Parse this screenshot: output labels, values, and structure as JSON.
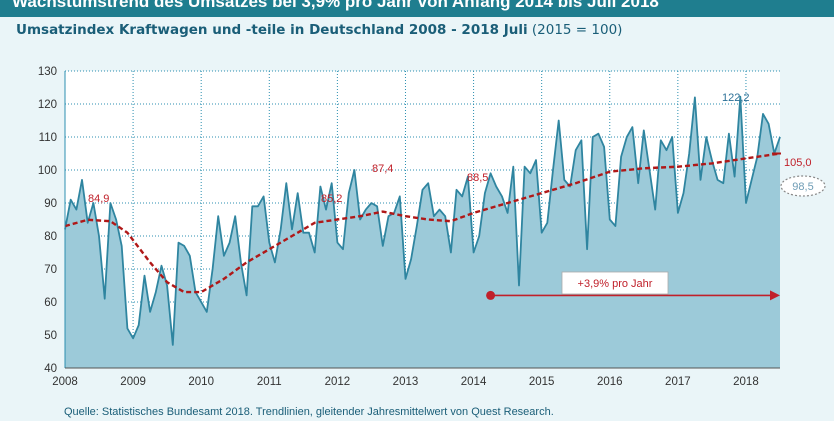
{
  "header": {
    "banner": "Wachstumstrend des Umsatzes bei 3,9% pro Jahr von Anfang 2014 bis Juli 2018",
    "title_bold": "Umsatzindex Kraftwagen und -teile in Deutschland 2008 - 2018 Juli",
    "title_suffix": "(2015 = 100)"
  },
  "footer": {
    "source": "Quelle: Statistisches Bundesamt 2018. Trendlinien, gleitender Jahresmittelwert von Quest Research."
  },
  "colors": {
    "area_fill": "#9ccad9",
    "index_line": "#2f85a0",
    "trend_line": "#b01818",
    "label_red": "#c0202a",
    "label_blue": "#2a6f96",
    "banner": "#1f7e8f"
  },
  "chart_data": {
    "type": "area",
    "grid": true,
    "ylim": [
      40,
      130
    ],
    "yticks": [
      "40",
      "50",
      "60",
      "70",
      "80",
      "90",
      "100",
      "110",
      "120",
      "130"
    ],
    "xlim": [
      2008,
      2018.5
    ],
    "xticks": [
      "2008",
      "2009",
      "2010",
      "2011",
      "2012",
      "2013",
      "2014",
      "2015",
      "2016",
      "2017",
      "2018"
    ],
    "series": [
      {
        "kind": "monthly_index",
        "x": [
          2008.0,
          2008.083,
          2008.167,
          2008.25,
          2008.333,
          2008.417,
          2008.5,
          2008.583,
          2008.667,
          2008.75,
          2008.833,
          2008.917,
          2009.0,
          2009.083,
          2009.167,
          2009.25,
          2009.333,
          2009.417,
          2009.5,
          2009.583,
          2009.667,
          2009.75,
          2009.833,
          2009.917,
          2010.0,
          2010.083,
          2010.167,
          2010.25,
          2010.333,
          2010.417,
          2010.5,
          2010.583,
          2010.667,
          2010.75,
          2010.833,
          2010.917,
          2011.0,
          2011.083,
          2011.167,
          2011.25,
          2011.333,
          2011.417,
          2011.5,
          2011.583,
          2011.667,
          2011.75,
          2011.833,
          2011.917,
          2012.0,
          2012.083,
          2012.167,
          2012.25,
          2012.333,
          2012.417,
          2012.5,
          2012.583,
          2012.667,
          2012.75,
          2012.833,
          2012.917,
          2013.0,
          2013.083,
          2013.167,
          2013.25,
          2013.333,
          2013.417,
          2013.5,
          2013.583,
          2013.667,
          2013.75,
          2013.833,
          2013.917,
          2014.0,
          2014.083,
          2014.167,
          2014.25,
          2014.333,
          2014.417,
          2014.5,
          2014.583,
          2014.667,
          2014.75,
          2014.833,
          2014.917,
          2015.0,
          2015.083,
          2015.167,
          2015.25,
          2015.333,
          2015.417,
          2015.5,
          2015.583,
          2015.667,
          2015.75,
          2015.833,
          2015.917,
          2016.0,
          2016.083,
          2016.167,
          2016.25,
          2016.333,
          2016.417,
          2016.5,
          2016.583,
          2016.667,
          2016.75,
          2016.833,
          2016.917,
          2017.0,
          2017.083,
          2017.167,
          2017.25,
          2017.333,
          2017.417,
          2017.5,
          2017.583,
          2017.667,
          2017.75,
          2017.833,
          2017.917,
          2018.0,
          2018.083,
          2018.167,
          2018.25,
          2018.333,
          2018.417,
          2018.5
        ],
        "y": [
          82,
          91,
          88,
          97,
          84,
          90,
          80,
          61,
          90,
          85,
          77,
          52,
          49,
          53,
          68,
          57,
          63,
          71,
          65,
          47,
          78,
          77,
          74,
          63,
          60,
          57,
          70,
          86,
          74,
          78,
          86,
          72,
          62,
          89,
          89,
          92,
          78,
          72,
          82,
          96,
          82,
          93,
          81,
          81,
          75,
          95,
          88,
          96,
          78,
          76,
          93,
          100,
          85,
          88,
          90,
          89,
          77,
          86,
          87,
          92,
          67,
          73,
          83,
          94,
          96,
          86,
          88,
          86,
          75,
          94,
          92,
          98,
          75,
          80,
          93,
          99,
          95,
          92,
          87,
          101,
          65,
          101,
          99,
          103,
          81,
          84,
          100,
          115,
          97,
          95,
          106,
          109,
          76,
          110,
          111,
          107,
          85,
          83,
          104,
          110,
          113,
          96,
          112,
          100,
          88,
          109,
          106,
          110,
          87,
          93,
          105,
          122,
          97,
          110,
          103,
          97,
          96,
          111,
          98,
          122.2,
          90,
          97,
          104,
          117,
          114,
          105,
          110
        ]
      },
      {
        "kind": "trend",
        "x": [
          2008.0,
          2008.333,
          2008.667,
          2008.917,
          2009.25,
          2009.5,
          2009.75,
          2010.0,
          2010.333,
          2010.667,
          2011.0,
          2011.333,
          2011.667,
          2012.0,
          2012.333,
          2012.667,
          2013.0,
          2013.333,
          2013.667,
          2014.0,
          2014.5,
          2015.0,
          2015.5,
          2016.0,
          2016.5,
          2017.0,
          2017.5,
          2018.0,
          2018.5
        ],
        "y": [
          83,
          84.9,
          84.5,
          81,
          72,
          66,
          63,
          63,
          67,
          72,
          76,
          80,
          84,
          85,
          86,
          87.4,
          86,
          85,
          84.5,
          87,
          90,
          93,
          96,
          99.5,
          100.5,
          101,
          102,
          103.5,
          105.0
        ]
      }
    ],
    "annotations": [
      {
        "text": "84,9",
        "color": "red"
      },
      {
        "text": "85,2",
        "color": "red"
      },
      {
        "text": "87,4",
        "color": "red"
      },
      {
        "text": "88,5",
        "color": "red"
      },
      {
        "text": "105,0",
        "color": "red"
      },
      {
        "text": "122,2",
        "color": "blue"
      },
      {
        "text": "98,5",
        "color": "blue"
      }
    ],
    "growth_label": "+3,9% pro Jahr",
    "growth_arrow": {
      "x_start": 2014.25,
      "x_end": 2018.5,
      "y": 62
    }
  }
}
